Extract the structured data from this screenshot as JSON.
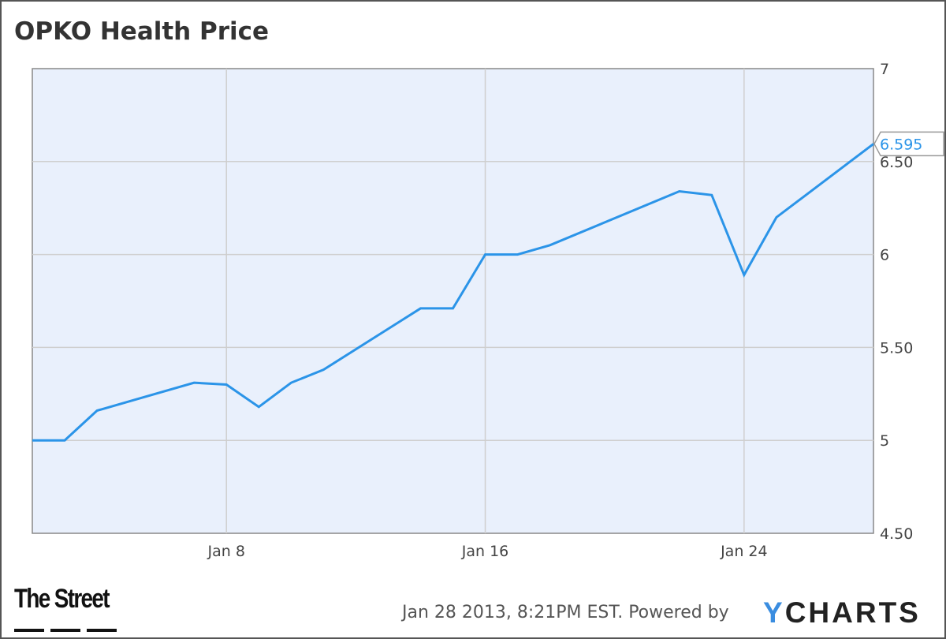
{
  "chart_data": {
    "type": "line",
    "title": "OPKO Health Price",
    "xlabel": "",
    "ylabel": "",
    "x": [
      "2013-01-02",
      "2013-01-03",
      "2013-01-04",
      "2013-01-07",
      "2013-01-08",
      "2013-01-09",
      "2013-01-10",
      "2013-01-11",
      "2013-01-14",
      "2013-01-15",
      "2013-01-16",
      "2013-01-17",
      "2013-01-18",
      "2013-01-22",
      "2013-01-23",
      "2013-01-24",
      "2013-01-25",
      "2013-01-28"
    ],
    "x_day_index": [
      2,
      3,
      4,
      7,
      8,
      9,
      10,
      11,
      14,
      15,
      16,
      17,
      18,
      22,
      23,
      24,
      25,
      28
    ],
    "series": [
      {
        "name": "OPKO Health Price",
        "color": "#2b94e8",
        "values": [
          5.0,
          5.0,
          5.16,
          5.31,
          5.3,
          5.18,
          5.31,
          5.38,
          5.71,
          5.71,
          6.0,
          6.0,
          6.05,
          6.34,
          6.32,
          5.89,
          6.2,
          6.595
        ]
      }
    ],
    "xlim": [
      2,
      28
    ],
    "ylim": [
      4.5,
      7
    ],
    "x_ticks": [
      {
        "day": 8,
        "label": "Jan 8"
      },
      {
        "day": 16,
        "label": "Jan 16"
      },
      {
        "day": 24,
        "label": "Jan 24"
      }
    ],
    "y_ticks": [
      {
        "value": 4.5,
        "label": "4.50"
      },
      {
        "value": 5,
        "label": "5"
      },
      {
        "value": 5.5,
        "label": "5.50"
      },
      {
        "value": 6,
        "label": "6"
      },
      {
        "value": 6.5,
        "label": "6.50"
      },
      {
        "value": 7,
        "label": "7"
      }
    ],
    "last_value_label": "6.595",
    "grid": true,
    "legend": "none"
  },
  "footer": {
    "timestamp": "Jan 28 2013, 8:21PM EST. Powered by",
    "brand_y": "Y",
    "brand_rest": "CHARTS",
    "source_logo": "The Street"
  }
}
